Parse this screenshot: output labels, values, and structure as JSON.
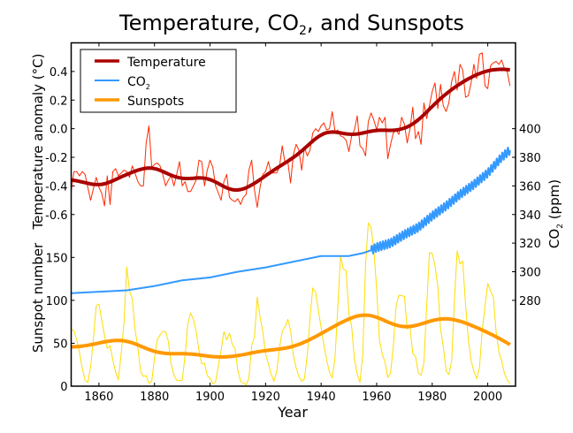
{
  "chart_data": {
    "type": "line",
    "title": "Temperature, CO2, and Sunspots",
    "title_parts": {
      "main": "Temperature, CO",
      "sub": "2",
      "rest": ", and Sunspots"
    },
    "xlabel": "Year",
    "xlim": [
      1850,
      2010
    ],
    "xticks": [
      1860,
      1880,
      1900,
      1920,
      1940,
      1960,
      1980,
      2000
    ],
    "axes": {
      "temperature": {
        "label": "Temperature anomaly (°C)",
        "ylim": [
          -1.8,
          0.6
        ],
        "ticks": [
          "-0.6",
          "-0.4",
          "-0.2",
          "0.0",
          "0.2",
          "0.4"
        ]
      },
      "sunspots": {
        "label": "Sunspot number",
        "ylim": [
          0,
          400
        ],
        "ticks": [
          "0",
          "50",
          "100",
          "150"
        ]
      },
      "co2": {
        "label_main": "CO",
        "label_sub": "2",
        "label_rest": " (ppm)",
        "ylim": [
          220,
          460
        ],
        "ticks": [
          "280",
          "300",
          "320",
          "340",
          "360",
          "380",
          "400"
        ]
      }
    },
    "legend": {
      "placement": "top-left",
      "entries": [
        {
          "label": "Temperature",
          "color": "#aa0000"
        },
        {
          "label_main": "CO",
          "label_sub": "2",
          "color": "#3399ff"
        },
        {
          "label": "Sunspots",
          "color": "#ff9900"
        }
      ]
    },
    "colors": {
      "temperature_raw": "#ff2a00",
      "temperature_smooth": "#aa0000",
      "co2": "#3399ff",
      "sunspots_raw": "#ffdd00",
      "sunspots_smooth": "#ff9900"
    },
    "temperature": {
      "start_year": 1850,
      "values": [
        -0.44,
        -0.3,
        -0.3,
        -0.33,
        -0.3,
        -0.32,
        -0.41,
        -0.5,
        -0.42,
        -0.34,
        -0.41,
        -0.45,
        -0.54,
        -0.33,
        -0.53,
        -0.3,
        -0.28,
        -0.33,
        -0.31,
        -0.29,
        -0.3,
        -0.34,
        -0.26,
        -0.31,
        -0.37,
        -0.4,
        -0.4,
        -0.1,
        0.02,
        -0.27,
        -0.25,
        -0.24,
        -0.26,
        -0.32,
        -0.4,
        -0.36,
        -0.33,
        -0.4,
        -0.32,
        -0.23,
        -0.4,
        -0.37,
        -0.44,
        -0.44,
        -0.4,
        -0.36,
        -0.22,
        -0.23,
        -0.4,
        -0.29,
        -0.22,
        -0.27,
        -0.4,
        -0.45,
        -0.5,
        -0.37,
        -0.32,
        -0.48,
        -0.5,
        -0.51,
        -0.49,
        -0.53,
        -0.48,
        -0.46,
        -0.29,
        -0.22,
        -0.43,
        -0.55,
        -0.41,
        -0.32,
        -0.3,
        -0.23,
        -0.31,
        -0.31,
        -0.31,
        -0.27,
        -0.12,
        -0.24,
        -0.23,
        -0.38,
        -0.18,
        -0.11,
        -0.15,
        -0.29,
        -0.13,
        -0.19,
        -0.15,
        -0.03,
        0.0,
        -0.02,
        0.02,
        0.04,
        -0.01,
        0.0,
        0.12,
        -0.02,
        -0.01,
        -0.05,
        -0.06,
        -0.08,
        -0.16,
        -0.05,
        -0.01,
        0.09,
        -0.12,
        -0.14,
        -0.19,
        0.05,
        0.11,
        0.06,
        -0.01,
        0.08,
        0.04,
        0.08,
        -0.21,
        -0.11,
        -0.03,
        -0.01,
        -0.04,
        0.08,
        0.03,
        -0.1,
        0.0,
        0.15,
        -0.07,
        -0.02,
        -0.11,
        0.18,
        0.07,
        0.16,
        0.26,
        0.32,
        0.14,
        0.31,
        0.16,
        0.12,
        0.18,
        0.33,
        0.4,
        0.27,
        0.45,
        0.41,
        0.22,
        0.23,
        0.32,
        0.45,
        0.35,
        0.52,
        0.53,
        0.3,
        0.28,
        0.44,
        0.46,
        0.47,
        0.45,
        0.48,
        0.42,
        0.4,
        0.3
      ]
    },
    "sunspots": {
      "start_year": 1850,
      "values": [
        66.6,
        64.5,
        54.1,
        39.0,
        20.6,
        6.7,
        4.3,
        22.7,
        54.8,
        93.8,
        95.8,
        77.2,
        59.1,
        44.0,
        47.0,
        30.5,
        16.3,
        7.3,
        37.6,
        74.0,
        139.0,
        111.2,
        101.6,
        66.2,
        44.7,
        17.0,
        11.3,
        12.4,
        3.4,
        6.0,
        32.3,
        54.3,
        59.7,
        63.7,
        63.5,
        52.2,
        25.4,
        13.1,
        6.8,
        6.3,
        7.1,
        35.6,
        73.0,
        85.1,
        78.0,
        64.0,
        41.8,
        26.2,
        26.7,
        12.1,
        9.5,
        2.7,
        5.0,
        24.4,
        42.0,
        63.5,
        53.8,
        62.0,
        48.5,
        43.9,
        18.6,
        5.7,
        3.6,
        1.4,
        9.6,
        47.4,
        57.1,
        103.9,
        80.6,
        63.6,
        37.6,
        26.1,
        14.2,
        5.8,
        16.7,
        44.3,
        63.9,
        69.0,
        77.8,
        64.9,
        35.7,
        21.2,
        11.1,
        5.7,
        8.7,
        36.1,
        79.7,
        114.4,
        109.6,
        88.8,
        67.8,
        47.5,
        30.6,
        16.3,
        9.6,
        33.2,
        92.6,
        151.6,
        136.3,
        134.7,
        83.9,
        69.4,
        31.5,
        13.9,
        4.4,
        38.0,
        141.7,
        190.2,
        184.8,
        159.0,
        112.3,
        53.9,
        37.5,
        27.9,
        10.2,
        15.1,
        47.0,
        93.8,
        105.9,
        105.5,
        104.5,
        66.6,
        68.9,
        38.0,
        34.5,
        15.5,
        12.6,
        27.5,
        92.5,
        155.4,
        154.6,
        140.4,
        115.9,
        66.6,
        45.9,
        17.9,
        13.4,
        29.4,
        100.2,
        157.6,
        142.6,
        145.7,
        94.3,
        54.6,
        29.9,
        17.5,
        8.6,
        21.5,
        64.3,
        93.3,
        119.6,
        111.0,
        104.0,
        63.7,
        40.4,
        29.8,
        15.2,
        7.5,
        2.9
      ]
    },
    "co2": {
      "years": [
        1850,
        1860,
        1870,
        1880,
        1890,
        1900,
        1910,
        1920,
        1930,
        1940,
        1950,
        1955,
        1958,
        1960,
        1965,
        1970,
        1975,
        1980,
        1985,
        1990,
        1995,
        2000,
        2005,
        2008
      ],
      "values": [
        285,
        286,
        287,
        290,
        294,
        296,
        300,
        303,
        307,
        311,
        311,
        313,
        315,
        317,
        320,
        326,
        331,
        339,
        346,
        354,
        361,
        369,
        380,
        385
      ],
      "seasonal_cycle_from_year": 1958,
      "seasonal_amplitude_ppm": 3
    }
  }
}
